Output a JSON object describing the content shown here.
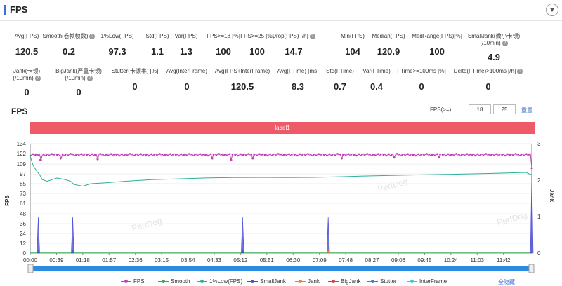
{
  "header": {
    "title": "FPS",
    "collapse_icon": "chevron-down-icon"
  },
  "metrics_row1": [
    {
      "label": "Avg(FPS)",
      "value": "120.5",
      "help": false
    },
    {
      "label": "Smooth(卷帧帧数)",
      "value": "0.2",
      "help": true
    },
    {
      "label": "1%Low(FPS)",
      "value": "97.3",
      "help": false
    },
    {
      "label": "Std(FPS)",
      "value": "1.1",
      "help": false
    },
    {
      "label": "Var(FPS)",
      "value": "1.3",
      "help": false
    },
    {
      "label": "FPS>=18 [%]",
      "value": "100",
      "help": false
    },
    {
      "label": "FPS>=25 [%]",
      "value": "100",
      "help": false
    },
    {
      "label": "Drop(FPS) [/h]",
      "value": "14.7",
      "help": true
    },
    {
      "label": "Min(FPS)",
      "value": "104",
      "help": false
    },
    {
      "label": "Median(FPS)",
      "value": "120.9",
      "help": false
    },
    {
      "label": "MedRange(FPS)[%]",
      "value": "100",
      "help": false
    },
    {
      "label": "SmallJank(微小卡顿)",
      "label2": "(/10min)",
      "value": "4.9",
      "help": true
    }
  ],
  "metrics_row2": [
    {
      "label": "Jank(卡顿)",
      "label2": "(/10min)",
      "value": "0",
      "help": true
    },
    {
      "label": "BigJank(严重卡顿)",
      "label2": "(/10min)",
      "value": "0",
      "help": true
    },
    {
      "label": "Stutter(卡顿率) [%]",
      "value": "0",
      "help": false
    },
    {
      "label": "Avg(InterFrame)",
      "value": "0",
      "help": false
    },
    {
      "label": "Avg(FPS+InterFrame)",
      "value": "120.5",
      "help": false
    },
    {
      "label": "Avg(FTime) [ms]",
      "value": "8.3",
      "help": false
    },
    {
      "label": "Std(FTime)",
      "value": "0.7",
      "help": false
    },
    {
      "label": "Var(FTime)",
      "value": "0.4",
      "help": false
    },
    {
      "label": "FTime>=100ms [%]",
      "value": "0",
      "help": false
    },
    {
      "label": "Delta(FTime)>100ms [/h]",
      "value": "0",
      "help": true
    }
  ],
  "chart_section": {
    "title": "FPS",
    "threshold_label": "FPS(>=)",
    "threshold_values": [
      "18",
      "25"
    ],
    "reset_label": "重置",
    "label_band": "label1",
    "watermark": "PerfDog",
    "hide_all_label": "全隐藏"
  },
  "chart_data": {
    "type": "line",
    "title": "",
    "ylabel": "FPS",
    "y2label": "Jank",
    "ylim": [
      0,
      134
    ],
    "y2lim": [
      0,
      3
    ],
    "y_ticks": [
      0,
      12,
      24,
      36,
      48,
      61,
      73,
      85,
      97,
      109,
      122,
      134
    ],
    "y2_ticks": [
      0,
      1,
      2,
      3
    ],
    "x_ticks": [
      "00:00",
      "00:39",
      "01:18",
      "01:57",
      "02:36",
      "03:15",
      "03:54",
      "04:33",
      "05:12",
      "05:51",
      "06:30",
      "07:09",
      "07:48",
      "08:27",
      "09:06",
      "09:45",
      "10:24",
      "11:03",
      "11:42"
    ],
    "x_max_seconds": 744,
    "series": [
      {
        "name": "FPS",
        "color": "#c23fb6",
        "axis": "left",
        "base": 120.5,
        "dips": [
          [
            15,
            114
          ],
          [
            45,
            116
          ],
          [
            100,
            115
          ],
          [
            270,
            116
          ],
          [
            298,
            114
          ],
          [
            330,
            116
          ],
          [
            462,
            116
          ],
          [
            540,
            117
          ],
          [
            606,
            117
          ],
          [
            744,
            104
          ]
        ]
      },
      {
        "name": "Smooth",
        "color": "#3aaa55",
        "axis": "left",
        "values": [
          [
            0,
            0.2
          ],
          [
            744,
            0.2
          ]
        ]
      },
      {
        "name": "1%Low(FPS)",
        "color": "#2ab09a",
        "axis": "left",
        "values": [
          [
            0,
            119
          ],
          [
            4,
            108
          ],
          [
            10,
            100
          ],
          [
            14,
            96
          ],
          [
            18,
            90
          ],
          [
            25,
            88
          ],
          [
            40,
            92
          ],
          [
            52,
            90
          ],
          [
            60,
            88
          ],
          [
            65,
            84
          ],
          [
            78,
            82
          ],
          [
            90,
            85
          ],
          [
            110,
            86
          ],
          [
            140,
            88
          ],
          [
            180,
            90
          ],
          [
            220,
            91
          ],
          [
            260,
            92
          ],
          [
            300,
            92.5
          ],
          [
            340,
            92.7
          ],
          [
            380,
            92.5
          ],
          [
            420,
            92.8
          ],
          [
            460,
            93.5
          ],
          [
            500,
            94.5
          ],
          [
            560,
            95.5
          ],
          [
            620,
            96.5
          ],
          [
            680,
            97.5
          ],
          [
            736,
            98.8
          ],
          [
            740,
            97
          ],
          [
            744,
            96
          ]
        ]
      },
      {
        "name": "SmallJank",
        "color": "#4a4fd6",
        "axis": "right",
        "spikes": [
          [
            12,
            1
          ],
          [
            63,
            1
          ],
          [
            315,
            1
          ],
          [
            442,
            1
          ],
          [
            744,
            2.15
          ]
        ]
      },
      {
        "name": "Jank",
        "color": "#f08030",
        "axis": "right",
        "spikes": [
          [
            442,
            0.1
          ]
        ]
      },
      {
        "name": "BigJank",
        "color": "#e03a3a",
        "axis": "right",
        "spikes": []
      },
      {
        "name": "Stutter",
        "color": "#3a7ddb",
        "axis": "right",
        "spikes": [
          [
            12,
            0.1
          ],
          [
            63,
            0.1
          ],
          [
            315,
            0.1
          ],
          [
            442,
            0.1
          ]
        ]
      },
      {
        "name": "InterFrame",
        "color": "#38c8d8",
        "axis": "left",
        "values": [
          [
            0,
            0
          ],
          [
            744,
            0
          ]
        ]
      }
    ],
    "legend_placement": "bottom"
  }
}
